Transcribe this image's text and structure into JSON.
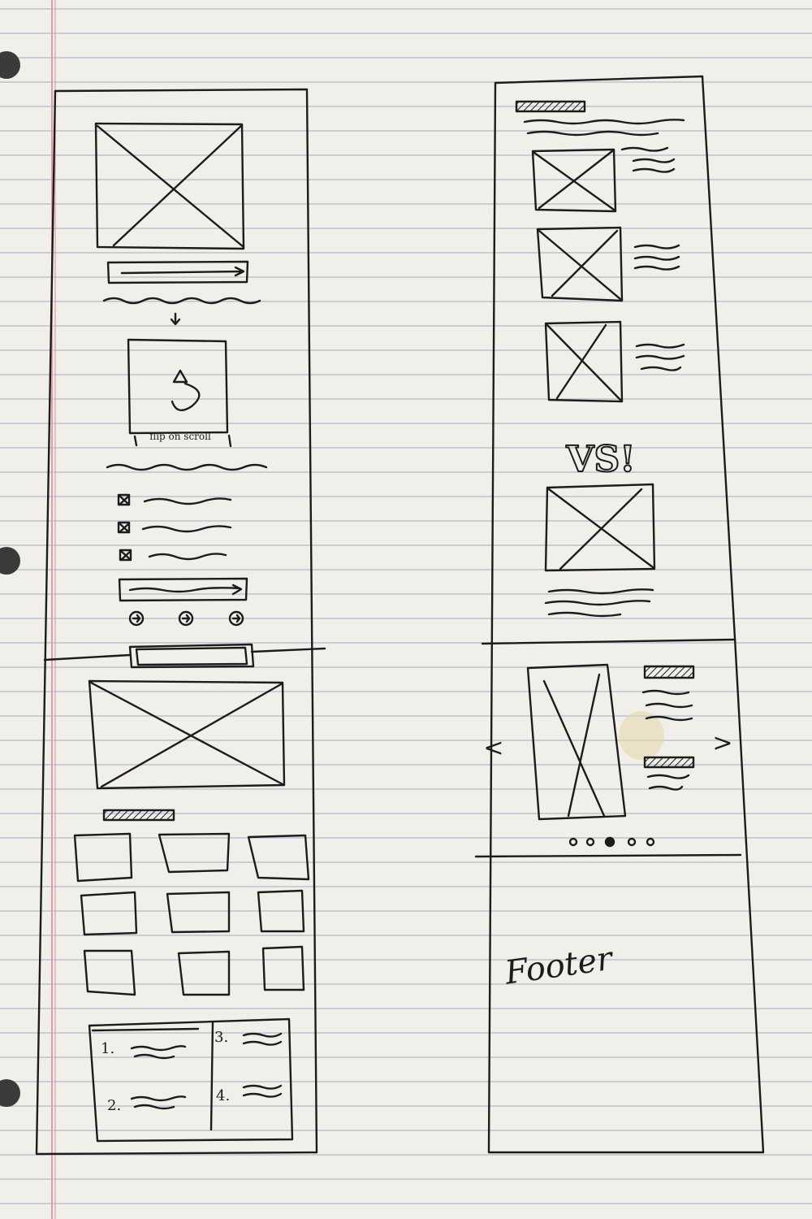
{
  "sketch": {
    "flip_label": "flip on scroll",
    "list_numbers": [
      "1.",
      "2.",
      "3.",
      "4."
    ],
    "vs_label": "VS!",
    "footer_label": "Footer",
    "carousel_prev": "<",
    "carousel_next": ">"
  },
  "colors": {
    "paper": "#f1efea",
    "rule_line": "#b9c3cf",
    "margin_line": "#e79aa6",
    "ink": "#1c1c1c",
    "stain": "#e6d6a8"
  }
}
